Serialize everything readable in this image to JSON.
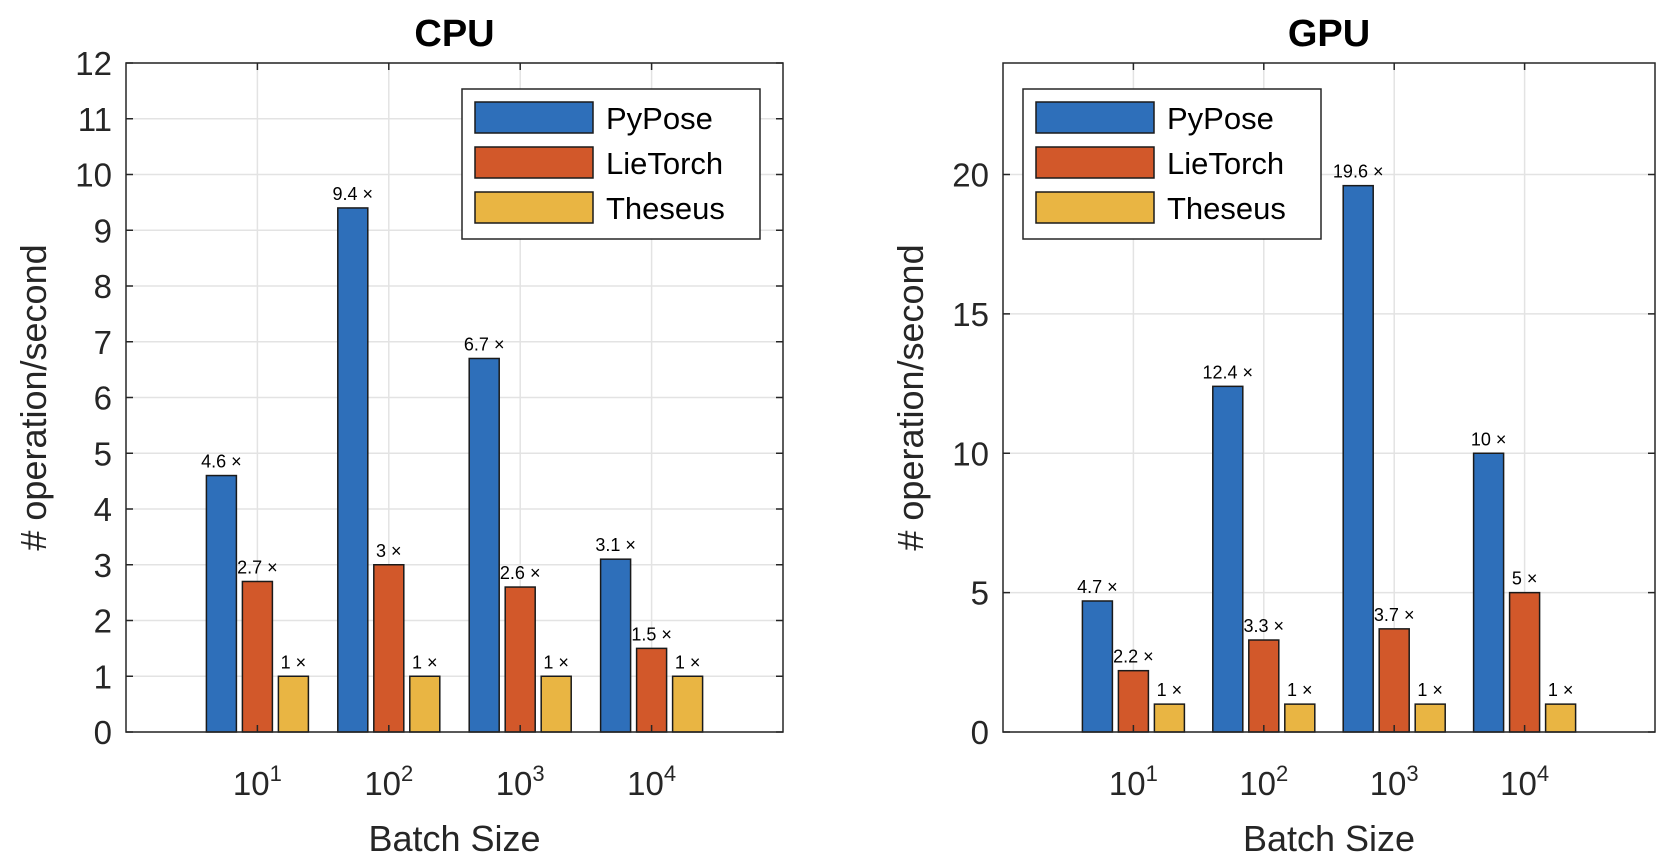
{
  "chart_data": [
    {
      "type": "bar",
      "title": "CPU",
      "xlabel": "Batch Size",
      "ylabel": "# operation/second",
      "categories": [
        {
          "base": "10",
          "exp": "1"
        },
        {
          "base": "10",
          "exp": "2"
        },
        {
          "base": "10",
          "exp": "3"
        },
        {
          "base": "10",
          "exp": "4"
        }
      ],
      "series": [
        {
          "name": "PyPose",
          "color": "#2e6fba",
          "values": [
            4.6,
            9.4,
            6.7,
            3.1
          ],
          "labels": [
            "4.6 ×",
            "9.4 ×",
            "6.7 ×",
            "3.1 ×"
          ]
        },
        {
          "name": "LieTorch",
          "color": "#d2582a",
          "values": [
            2.7,
            3.0,
            2.6,
            1.5
          ],
          "labels": [
            "2.7 ×",
            "3 ×",
            "2.6 ×",
            "1.5 ×"
          ]
        },
        {
          "name": "Theseus",
          "color": "#e9b543",
          "values": [
            1,
            1,
            1,
            1
          ],
          "labels": [
            "1 ×",
            "1 ×",
            "1 ×",
            "1 ×"
          ]
        }
      ],
      "ylim": [
        0,
        12
      ],
      "yticks": [
        0,
        1,
        2,
        3,
        4,
        5,
        6,
        7,
        8,
        9,
        10,
        11,
        12
      ],
      "grid": true,
      "legend_position": "top-right"
    },
    {
      "type": "bar",
      "title": "GPU",
      "xlabel": "Batch Size",
      "ylabel": "# operation/second",
      "categories": [
        {
          "base": "10",
          "exp": "1"
        },
        {
          "base": "10",
          "exp": "2"
        },
        {
          "base": "10",
          "exp": "3"
        },
        {
          "base": "10",
          "exp": "4"
        }
      ],
      "series": [
        {
          "name": "PyPose",
          "color": "#2e6fba",
          "values": [
            4.7,
            12.4,
            19.6,
            10
          ],
          "labels": [
            "4.7 ×",
            "12.4 ×",
            "19.6 ×",
            "10 ×"
          ]
        },
        {
          "name": "LieTorch",
          "color": "#d2582a",
          "values": [
            2.2,
            3.3,
            3.7,
            5
          ],
          "labels": [
            "2.2 ×",
            "3.3 ×",
            "3.7 ×",
            "5 ×"
          ]
        },
        {
          "name": "Theseus",
          "color": "#e9b543",
          "values": [
            1,
            1,
            1,
            1
          ],
          "labels": [
            "1 ×",
            "1 ×",
            "1 ×",
            "1 ×"
          ]
        }
      ],
      "ylim": [
        0,
        24
      ],
      "yticks": [
        0,
        5,
        10,
        15,
        20
      ],
      "grid": true,
      "legend_position": "top-left"
    }
  ]
}
